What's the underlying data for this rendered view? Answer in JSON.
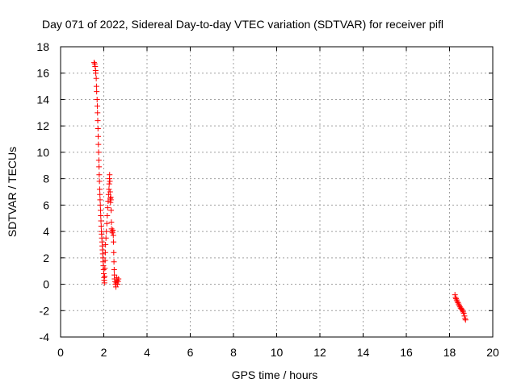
{
  "chart_data": {
    "type": "scatter",
    "title": "Day 071 of 2022, Sidereal Day-to-day VTEC variation (SDTVAR) for receiver pifl",
    "xlabel": "GPS time / hours",
    "ylabel": "SDTVAR / TECUs",
    "xlim": [
      0,
      20
    ],
    "ylim": [
      -4,
      18
    ],
    "xticks": [
      0,
      2,
      4,
      6,
      8,
      10,
      12,
      14,
      16,
      18,
      20
    ],
    "yticks": [
      -4,
      -2,
      0,
      2,
      4,
      6,
      8,
      10,
      12,
      14,
      16,
      18
    ],
    "grid": true,
    "marker": "plus",
    "color": "#ff0000",
    "series": [
      {
        "x": [
          1.55,
          1.58,
          1.6,
          1.62,
          1.63,
          1.65,
          1.66,
          1.67,
          1.69,
          1.7,
          1.71,
          1.72,
          1.73,
          1.74,
          1.75,
          1.76,
          1.77,
          1.78,
          1.79,
          1.8,
          1.81,
          1.82,
          1.83,
          1.84,
          1.85,
          1.86,
          1.87,
          1.88,
          1.89,
          1.9,
          1.91,
          1.92,
          1.93,
          1.94,
          1.95,
          1.96,
          1.97,
          1.98,
          1.99,
          2.0,
          2.01,
          2.02,
          2.03,
          2.04,
          2.05,
          2.06,
          2.07,
          2.08,
          2.1,
          2.12,
          2.14,
          2.16,
          2.18,
          2.2,
          2.22,
          2.24,
          2.25,
          2.26,
          2.27,
          2.28,
          2.29,
          2.3,
          2.31,
          2.32,
          2.33,
          2.34,
          2.35,
          2.36,
          2.38,
          2.4,
          2.42,
          2.44,
          2.45,
          2.46,
          2.47,
          2.48,
          2.49,
          2.5,
          2.52,
          2.54,
          2.56,
          2.58,
          2.6,
          2.62,
          2.64,
          2.66,
          2.68,
          18.25,
          18.28,
          18.3,
          18.33,
          18.36,
          18.39,
          18.42,
          18.45,
          18.48,
          18.51,
          18.54,
          18.57,
          18.6,
          18.63,
          18.66,
          18.69,
          18.72,
          18.74
        ],
        "y": [
          16.8,
          16.7,
          16.5,
          16.2,
          16.0,
          15.6,
          15.0,
          14.6,
          14.0,
          13.5,
          13.0,
          12.4,
          11.8,
          11.2,
          10.6,
          10.0,
          9.4,
          8.9,
          8.3,
          7.8,
          7.2,
          6.8,
          6.4,
          6.0,
          5.6,
          5.2,
          4.8,
          4.4,
          4.0,
          3.8,
          3.5,
          3.2,
          2.9,
          2.6,
          2.3,
          2.0,
          1.7,
          1.4,
          1.1,
          0.8,
          0.5,
          0.3,
          0.1,
          0.6,
          1.2,
          1.8,
          2.4,
          3.0,
          3.5,
          4.0,
          4.6,
          5.2,
          5.8,
          6.3,
          6.8,
          7.2,
          7.6,
          8.0,
          8.3,
          7.8,
          7.0,
          6.5,
          6.2,
          6.6,
          6.4,
          5.6,
          4.7,
          4.2,
          4.0,
          3.9,
          4.1,
          3.7,
          3.2,
          2.4,
          1.7,
          1.1,
          0.7,
          0.4,
          0.2,
          0.0,
          -0.2,
          0.1,
          0.5,
          0.3,
          0.0,
          0.2,
          0.4,
          -0.8,
          -1.0,
          -1.1,
          -1.2,
          -1.3,
          -1.4,
          -1.5,
          -1.6,
          -1.7,
          -1.8,
          -1.85,
          -1.9,
          -2.0,
          -2.1,
          -2.2,
          -2.4,
          -2.6,
          -2.7
        ]
      }
    ]
  }
}
